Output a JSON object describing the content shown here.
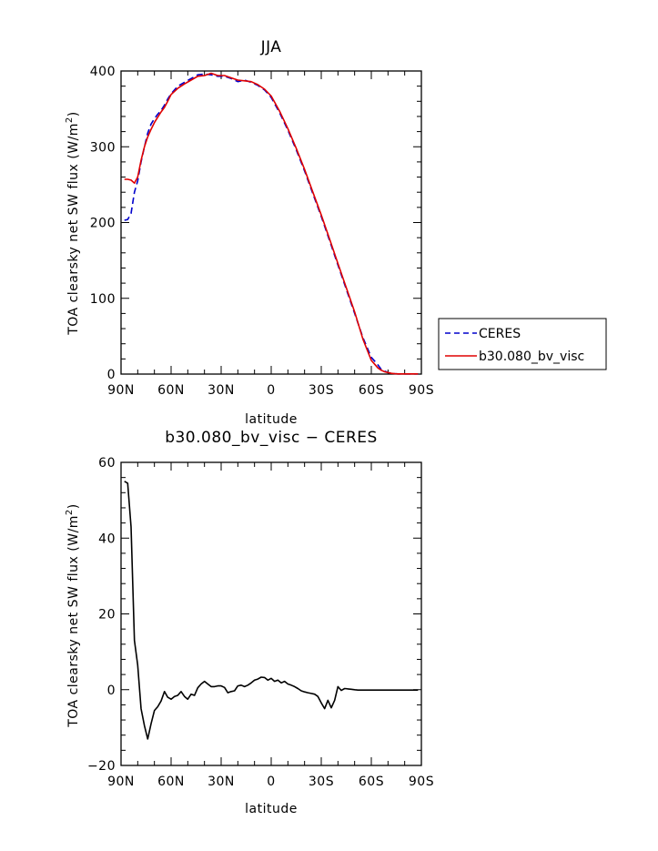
{
  "chart_data": [
    {
      "type": "line",
      "title": "JJA",
      "xlabel": "latitude",
      "ylabel": "TOA clearsky net SW flux (W/m2)",
      "ylabel_parts": {
        "main": "TOA clearsky net SW flux (W/m",
        "sup": "2",
        "end": ")"
      },
      "xlim": [
        90,
        -90
      ],
      "ylim": [
        0,
        400
      ],
      "xticks": [
        90,
        60,
        30,
        0,
        -30,
        -60,
        -90
      ],
      "xtick_labels": [
        "90N",
        "60N",
        "30N",
        "0",
        "30S",
        "60S",
        "90S"
      ],
      "yticks": [
        0,
        100,
        200,
        300,
        400
      ],
      "ytick_labels": [
        "0",
        "100",
        "200",
        "300",
        "400"
      ],
      "legend": "right",
      "series": [
        {
          "name": "CERES",
          "color": "#0000cc",
          "dash": "dashed",
          "x": [
            88,
            86,
            84,
            82,
            80,
            78,
            76,
            74,
            72,
            70,
            68,
            66,
            64,
            62,
            60,
            56,
            52,
            48,
            44,
            40,
            36,
            32,
            28,
            24,
            20,
            16,
            12,
            8,
            4,
            0,
            -5,
            -10,
            -15,
            -20,
            -25,
            -30,
            -35,
            -40,
            -45,
            -50,
            -55,
            -60,
            -62,
            -64,
            -66,
            -68,
            -70,
            -72,
            -74,
            -76,
            -78,
            -80,
            -84,
            -88
          ],
          "y": [
            203,
            204,
            212,
            240,
            255,
            280,
            300,
            318,
            330,
            337,
            343,
            348,
            355,
            363,
            370,
            380,
            385,
            390,
            395,
            396,
            395,
            393,
            393,
            390,
            386,
            388,
            385,
            381,
            375,
            365,
            345,
            322,
            296,
            268,
            238,
            208,
            176,
            144,
            112,
            80,
            48,
            22,
            17,
            12,
            6,
            4,
            2,
            1,
            0.5,
            0.3,
            0.2,
            0.2,
            0.2,
            0.2
          ]
        },
        {
          "name": "b30.080_bv_visc",
          "color": "#e00000",
          "dash": "solid",
          "x": [
            88,
            86,
            84,
            82,
            80,
            78,
            76,
            74,
            72,
            70,
            68,
            66,
            64,
            62,
            60,
            56,
            52,
            48,
            44,
            40,
            36,
            32,
            28,
            24,
            20,
            16,
            12,
            8,
            4,
            0,
            -5,
            -10,
            -15,
            -20,
            -25,
            -30,
            -35,
            -40,
            -45,
            -50,
            -55,
            -60,
            -62,
            -64,
            -66,
            -68,
            -70,
            -72,
            -74,
            -76,
            -78,
            -80,
            -84,
            -88
          ],
          "y": [
            257,
            257,
            256,
            252,
            260,
            282,
            300,
            313,
            323,
            332,
            339,
            346,
            352,
            360,
            369,
            377,
            383,
            388,
            393,
            394,
            397,
            394,
            394,
            391,
            388,
            387,
            386,
            382,
            376,
            367,
            347,
            324,
            298,
            270,
            240,
            210,
            178,
            146,
            114,
            82,
            46,
            18,
            13,
            8,
            5,
            3,
            2,
            1,
            0.5,
            0.3,
            0.2,
            0.2,
            0.2,
            0.2
          ]
        }
      ]
    },
    {
      "type": "line",
      "title": "b30.080_bv_visc − CERES",
      "xlabel": "latitude",
      "ylabel": "TOA clearsky net SW flux (W/m2)",
      "ylabel_parts": {
        "main": "TOA clearsky net SW flux (W/m",
        "sup": "2",
        "end": ")"
      },
      "xlim": [
        90,
        -90
      ],
      "ylim": [
        -20,
        60
      ],
      "xticks": [
        90,
        60,
        30,
        0,
        -30,
        -60,
        -90
      ],
      "xtick_labels": [
        "90N",
        "60N",
        "30N",
        "0",
        "30S",
        "60S",
        "90S"
      ],
      "yticks": [
        -20,
        0,
        20,
        40,
        60
      ],
      "ytick_labels": [
        "−20",
        "0",
        "20",
        "40",
        "60"
      ],
      "series": [
        {
          "color": "#000000",
          "dash": "solid",
          "x": [
            88,
            86,
            84,
            82,
            80,
            78,
            76,
            74,
            72,
            70,
            68,
            66,
            64,
            62,
            60,
            58,
            56,
            54,
            52,
            50,
            48,
            46,
            44,
            42,
            40,
            38,
            36,
            34,
            32,
            30,
            28,
            26,
            24,
            22,
            20,
            18,
            16,
            14,
            12,
            10,
            8,
            6,
            4,
            2,
            0,
            -2,
            -4,
            -6,
            -8,
            -10,
            -12,
            -14,
            -16,
            -18,
            -20,
            -22,
            -24,
            -26,
            -28,
            -30,
            -32,
            -34,
            -36,
            -38,
            -40,
            -42,
            -44,
            -46,
            -48,
            -50,
            -52,
            -54,
            -56,
            -58,
            -60,
            -62,
            -64,
            -66,
            -68,
            -70,
            -72,
            -74,
            -76,
            -78,
            -80,
            -82,
            -84,
            -86,
            -88
          ],
          "y": [
            55,
            54.5,
            43,
            13,
            6.5,
            -5,
            -9.5,
            -13,
            -9,
            -5.5,
            -4.5,
            -3,
            -0.5,
            -2,
            -2.5,
            -1.8,
            -1.5,
            -0.5,
            -1.8,
            -2.5,
            -1.2,
            -1.5,
            0.5,
            1.5,
            2.2,
            1.5,
            0.8,
            0.8,
            1,
            1,
            0.6,
            -0.8,
            -0.5,
            -0.3,
            1,
            1.2,
            0.8,
            1.2,
            1.8,
            2.5,
            2.8,
            3.3,
            3.2,
            2.5,
            3,
            2.2,
            2.5,
            1.8,
            2.2,
            1.5,
            1.2,
            0.8,
            0.3,
            -0.3,
            -0.6,
            -0.8,
            -1,
            -1.2,
            -1.8,
            -3.5,
            -5,
            -2.8,
            -4.8,
            -2.8,
            0.8,
            -0.2,
            0.3,
            0.2,
            0.1,
            0,
            -0.1,
            -0.1,
            -0.1,
            -0.1,
            -0.1,
            -0.1,
            -0.1,
            -0.1,
            -0.1,
            -0.1,
            -0.1,
            -0.1,
            -0.1,
            -0.1,
            -0.1,
            -0.1,
            -0.1,
            -0.1,
            -0.1
          ]
        }
      ]
    }
  ]
}
